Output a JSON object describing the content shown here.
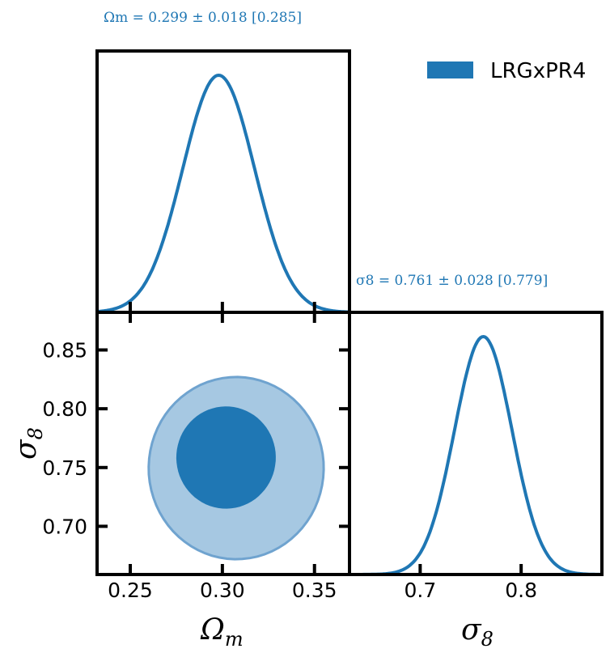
{
  "colors": {
    "series": "#1f77b4",
    "contour_inner": "#1f77b4",
    "contour_outer": "#a6c8e2",
    "contour_outer_edge": "#6fa3cf",
    "frame": "#000000"
  },
  "legend": {
    "label": "LRGxPR4",
    "placement": "top-right"
  },
  "annotations": {
    "omega_m": "Ωm = 0.299 ± 0.018 [0.285]",
    "sigma_8": "σ8 = 0.761 ± 0.028 [0.779]"
  },
  "axis_labels": {
    "omega_m_main": "Ω",
    "omega_m_sub": "m",
    "sigma_8_main": "σ",
    "sigma_8_sub": "8"
  },
  "chart_data": {
    "type": "corner",
    "parameters": [
      {
        "name": "Omega_m",
        "mean": 0.299,
        "sigma": 0.018,
        "bestfit": 0.285,
        "range": [
          0.232,
          0.369
        ],
        "ticks": [
          0.25,
          0.3,
          0.35
        ],
        "tick_labels": [
          "0.25",
          "0.30",
          "0.35"
        ]
      },
      {
        "name": "sigma_8",
        "mean": 0.761,
        "sigma": 0.028,
        "bestfit": 0.779,
        "range": [
          0.659,
          0.882
        ],
        "ticks": [
          0.7,
          0.75,
          0.8,
          0.85
        ],
        "tick_labels": [
          "0.70",
          "0.75",
          "0.80",
          "0.85"
        ],
        "diag_range": [
          0.63,
          0.88
        ],
        "diag_ticks": [
          0.7,
          0.8
        ],
        "diag_tick_labels": [
          "0.7",
          "0.8"
        ]
      }
    ],
    "marginal_omega_m": {
      "peak": 0.298,
      "width": 0.0195
    },
    "marginal_sigma_8": {
      "peak": 0.7625,
      "width": 0.0285
    },
    "contours": [
      {
        "level": "95%",
        "center": [
          0.3075,
          0.7495
        ],
        "axes": [
          0.0475,
          0.0775
        ],
        "angle_deg": -41
      },
      {
        "level": "68%",
        "center": [
          0.302,
          0.7585
        ],
        "axes": [
          0.027,
          0.0435
        ],
        "angle_deg": -34
      }
    ],
    "series": [
      {
        "name": "LRGxPR4"
      }
    ],
    "grid": false
  }
}
